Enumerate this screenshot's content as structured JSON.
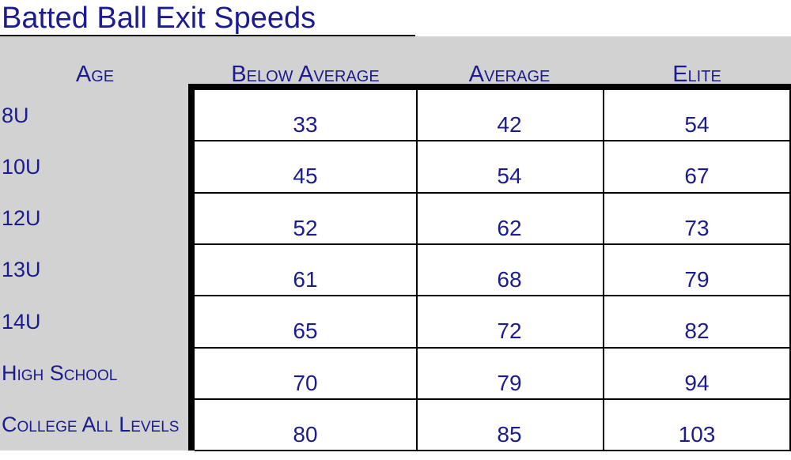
{
  "chart_data": {
    "type": "table",
    "title": "Batted Ball Exit Speeds",
    "columns": [
      "Age",
      "Below Average",
      "Average",
      "Elite"
    ],
    "rows": [
      {
        "age": "8U",
        "values": [
          "33",
          "42",
          "54"
        ]
      },
      {
        "age": "10U",
        "values": [
          "45",
          "54",
          "67"
        ]
      },
      {
        "age": "12U",
        "values": [
          "52",
          "62",
          "73"
        ]
      },
      {
        "age": "13U",
        "values": [
          "61",
          "68",
          "79"
        ]
      },
      {
        "age": "14U",
        "values": [
          "65",
          "72",
          "82"
        ]
      },
      {
        "age": "High School",
        "values": [
          "70",
          "79",
          "94"
        ]
      },
      {
        "age": "College All Levels",
        "values": [
          "80",
          "85",
          "103"
        ]
      }
    ]
  },
  "colors": {
    "text": "#1c1c8e",
    "header_background": "#d2d2d2",
    "grid": "#000000"
  }
}
